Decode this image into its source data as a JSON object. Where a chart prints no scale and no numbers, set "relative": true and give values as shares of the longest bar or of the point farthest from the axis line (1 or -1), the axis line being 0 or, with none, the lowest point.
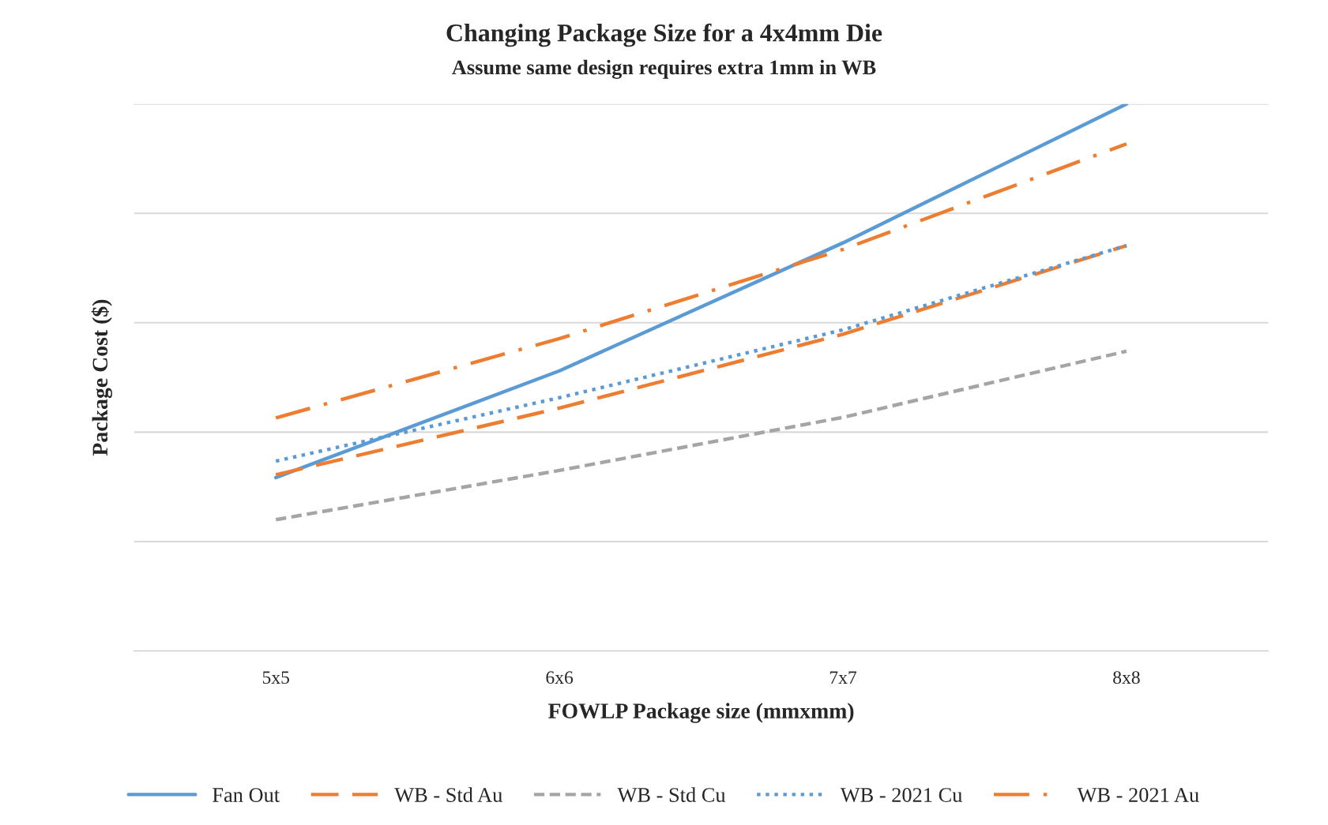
{
  "chart_data": {
    "type": "line",
    "title": "Changing Package Size for a 4x4mm Die",
    "subtitle": "Assume same design requires extra 1mm in WB",
    "xlabel": "FOWLP Package size (mmxmm)",
    "ylabel": "Package Cost ($)",
    "relative": true,
    "grid": "y",
    "legend": "bottom",
    "marker": "none",
    "categories": [
      "5x5",
      "6x6",
      "7x7",
      "8x8"
    ],
    "series": [
      {
        "name": "Fan Out",
        "color": "#5b9bd5",
        "line_style": "solid",
        "values": [
          0.317,
          0.512,
          0.746,
          1
        ]
      },
      {
        "name": "WB - Std Au",
        "color": "#ed7d31",
        "line_style": "dashed",
        "values": [
          0.322,
          0.444,
          0.579,
          0.741
        ]
      },
      {
        "name": "WB - Std Cu",
        "color": "#a5a5a5",
        "line_style": "dashed",
        "values": [
          0.24,
          0.33,
          0.427,
          0.548
        ]
      },
      {
        "name": "WB - 2021 Cu",
        "color": "#5b9bd5",
        "line_style": "dotted",
        "values": [
          0.347,
          0.463,
          0.587,
          0.741
        ]
      },
      {
        "name": "WB - 2021 Au",
        "color": "#ed7d31",
        "line_style": "dashdot",
        "values": [
          0.426,
          0.571,
          0.734,
          0.927
        ]
      }
    ]
  }
}
